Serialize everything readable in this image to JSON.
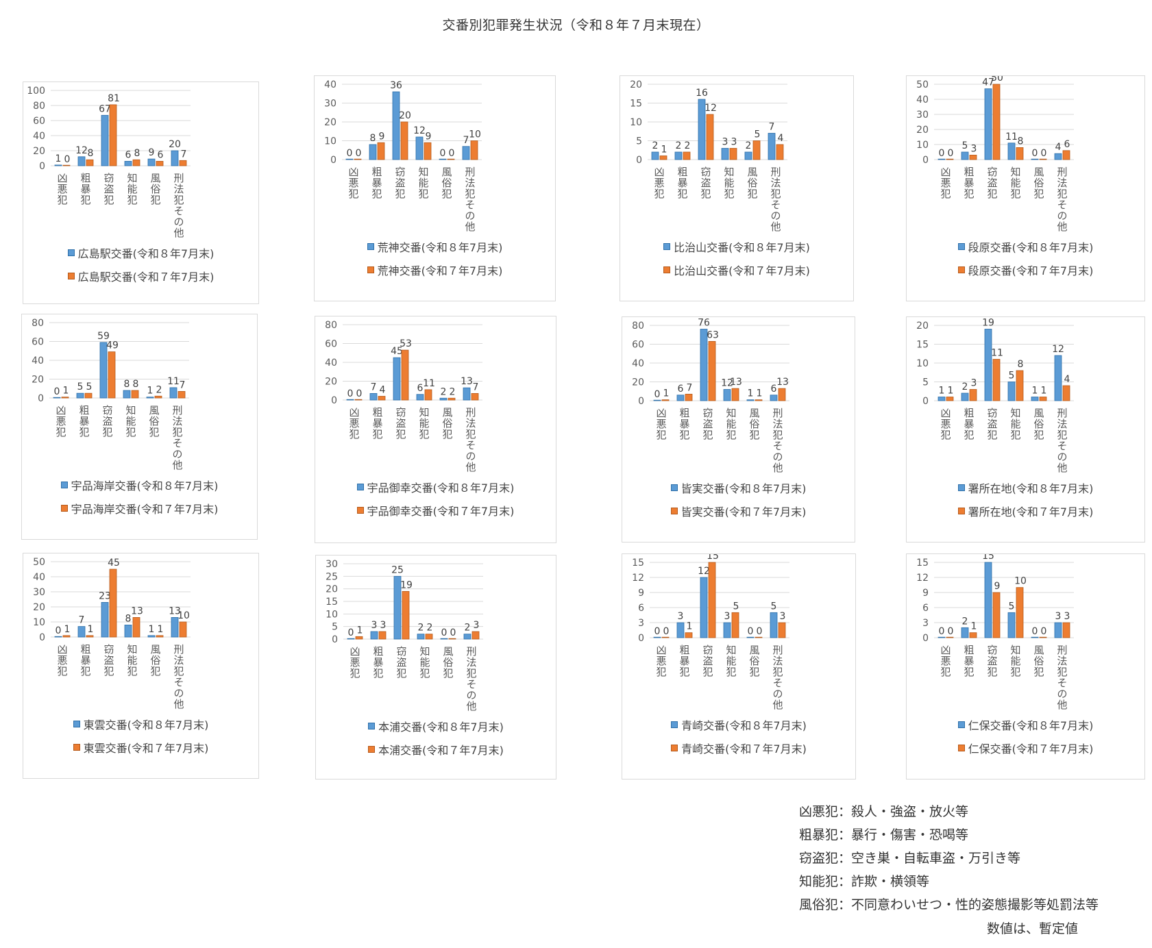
{
  "title": "交番別犯罪発生状況（令和８年７月末現在）",
  "colors": {
    "current": "#5b9bd5",
    "current_border": "#2e6fa8",
    "previous": "#ed7d31",
    "previous_border": "#b45a1c",
    "grid": "#d9d9d9",
    "axis_text": "#595959"
  },
  "categories": [
    "凶悪犯",
    "粗暴犯",
    "窃盗犯",
    "知能犯",
    "風俗犯",
    "刑法犯その他"
  ],
  "chart_data": [
    {
      "type": "bar",
      "categories": [
        "凶悪犯",
        "粗暴犯",
        "窃盗犯",
        "知能犯",
        "風俗犯",
        "刑法犯その他"
      ],
      "ylim": [
        0,
        100
      ],
      "yticks": [
        0,
        20,
        40,
        60,
        80,
        100
      ],
      "series": [
        {
          "name": "広島駅交番(令和８年7月末)",
          "values": [
            1,
            12,
            67,
            6,
            9,
            20
          ]
        },
        {
          "name": "広島駅交番(令和７年7月末)",
          "values": [
            0,
            8,
            81,
            8,
            6,
            7
          ]
        }
      ]
    },
    {
      "type": "bar",
      "categories": [
        "凶悪犯",
        "粗暴犯",
        "窃盗犯",
        "知能犯",
        "風俗犯",
        "刑法犯その他"
      ],
      "ylim": [
        0,
        40
      ],
      "yticks": [
        0,
        10,
        20,
        30,
        40
      ],
      "series": [
        {
          "name": "荒神交番(令和８年7月末)",
          "values": [
            0,
            8,
            36,
            12,
            0,
            7
          ]
        },
        {
          "name": "荒神交番(令和７年7月末)",
          "values": [
            0,
            9,
            20,
            9,
            0,
            10
          ]
        }
      ]
    },
    {
      "type": "bar",
      "categories": [
        "凶悪犯",
        "粗暴犯",
        "窃盗犯",
        "知能犯",
        "風俗犯",
        "刑法犯その他"
      ],
      "ylim": [
        0,
        20
      ],
      "yticks": [
        0,
        5,
        10,
        15,
        20
      ],
      "series": [
        {
          "name": "比治山交番(令和８年7月末)",
          "values": [
            2,
            2,
            16,
            3,
            2,
            7
          ]
        },
        {
          "name": "比治山交番(令和７年7月末)",
          "values": [
            1,
            2,
            12,
            3,
            5,
            4
          ]
        }
      ]
    },
    {
      "type": "bar",
      "categories": [
        "凶悪犯",
        "粗暴犯",
        "窃盗犯",
        "知能犯",
        "風俗犯",
        "刑法犯その他"
      ],
      "ylim": [
        0,
        50
      ],
      "yticks": [
        0,
        10,
        20,
        30,
        40,
        50
      ],
      "series": [
        {
          "name": "段原交番(令和８年7月末)",
          "values": [
            0,
            5,
            47,
            11,
            0,
            4
          ]
        },
        {
          "name": "段原交番(令和７年7月末)",
          "values": [
            0,
            3,
            50,
            8,
            0,
            6
          ]
        }
      ]
    },
    {
      "type": "bar",
      "categories": [
        "凶悪犯",
        "粗暴犯",
        "窃盗犯",
        "知能犯",
        "風俗犯",
        "刑法犯その他"
      ],
      "ylim": [
        0,
        80
      ],
      "yticks": [
        0,
        20,
        40,
        60,
        80
      ],
      "series": [
        {
          "name": "宇品海岸交番(令和８年7月末)",
          "values": [
            0,
            5,
            59,
            8,
            1,
            11
          ]
        },
        {
          "name": "宇品海岸交番(令和７年7月末)",
          "values": [
            1,
            5,
            49,
            8,
            2,
            7
          ]
        }
      ]
    },
    {
      "type": "bar",
      "categories": [
        "凶悪犯",
        "粗暴犯",
        "窃盗犯",
        "知能犯",
        "風俗犯",
        "刑法犯その他"
      ],
      "ylim": [
        0,
        80
      ],
      "yticks": [
        0,
        20,
        40,
        60,
        80
      ],
      "series": [
        {
          "name": "宇品御幸交番(令和８年7月末)",
          "values": [
            0,
            7,
            45,
            6,
            2,
            13
          ]
        },
        {
          "name": "宇品御幸交番(令和７年7月末)",
          "values": [
            0,
            4,
            53,
            11,
            2,
            7
          ]
        }
      ]
    },
    {
      "type": "bar",
      "categories": [
        "凶悪犯",
        "粗暴犯",
        "窃盗犯",
        "知能犯",
        "風俗犯",
        "刑法犯その他"
      ],
      "ylim": [
        0,
        80
      ],
      "yticks": [
        0,
        20,
        40,
        60,
        80
      ],
      "series": [
        {
          "name": "皆実交番(令和８年7月末)",
          "values": [
            0,
            6,
            76,
            12,
            1,
            6
          ]
        },
        {
          "name": "皆実交番(令和７年7月末)",
          "values": [
            1,
            7,
            63,
            13,
            1,
            13
          ]
        }
      ]
    },
    {
      "type": "bar",
      "categories": [
        "凶悪犯",
        "粗暴犯",
        "窃盗犯",
        "知能犯",
        "風俗犯",
        "刑法犯その他"
      ],
      "ylim": [
        0,
        20
      ],
      "yticks": [
        0,
        5,
        10,
        15,
        20
      ],
      "series": [
        {
          "name": "署所在地(令和８年7月末)",
          "values": [
            1,
            2,
            19,
            5,
            1,
            12
          ]
        },
        {
          "name": "署所在地(令和７年7月末)",
          "values": [
            1,
            3,
            11,
            8,
            1,
            4
          ]
        }
      ]
    },
    {
      "type": "bar",
      "categories": [
        "凶悪犯",
        "粗暴犯",
        "窃盗犯",
        "知能犯",
        "風俗犯",
        "刑法犯その他"
      ],
      "ylim": [
        0,
        50
      ],
      "yticks": [
        0,
        10,
        20,
        30,
        40,
        50
      ],
      "series": [
        {
          "name": "東雲交番(令和８年7月末)",
          "values": [
            0,
            7,
            23,
            8,
            1,
            13
          ]
        },
        {
          "name": "東雲交番(令和７年7月末)",
          "values": [
            1,
            1,
            45,
            13,
            1,
            10
          ]
        }
      ]
    },
    {
      "type": "bar",
      "categories": [
        "凶悪犯",
        "粗暴犯",
        "窃盗犯",
        "知能犯",
        "風俗犯",
        "刑法犯その他"
      ],
      "ylim": [
        0,
        30
      ],
      "yticks": [
        0,
        5,
        10,
        15,
        20,
        25,
        30
      ],
      "series": [
        {
          "name": "本浦交番(令和８年7月末)",
          "values": [
            0,
            3,
            25,
            2,
            0,
            2
          ]
        },
        {
          "name": "本浦交番(令和７年7月末)",
          "values": [
            1,
            3,
            19,
            2,
            0,
            3
          ]
        }
      ]
    },
    {
      "type": "bar",
      "categories": [
        "凶悪犯",
        "粗暴犯",
        "窃盗犯",
        "知能犯",
        "風俗犯",
        "刑法犯その他"
      ],
      "ylim": [
        0,
        15
      ],
      "yticks": [
        0,
        3,
        6,
        9,
        12,
        15
      ],
      "series": [
        {
          "name": "青崎交番(令和８年7月末)",
          "values": [
            0,
            3,
            12,
            3,
            0,
            5
          ]
        },
        {
          "name": "青崎交番(令和７年7月末)",
          "values": [
            0,
            1,
            15,
            5,
            0,
            3
          ]
        }
      ]
    },
    {
      "type": "bar",
      "categories": [
        "凶悪犯",
        "粗暴犯",
        "窃盗犯",
        "知能犯",
        "風俗犯",
        "刑法犯その他"
      ],
      "ylim": [
        0,
        15
      ],
      "yticks": [
        0,
        3,
        6,
        9,
        12,
        15
      ],
      "series": [
        {
          "name": "仁保交番(令和８年7月末)",
          "values": [
            0,
            2,
            15,
            5,
            0,
            3
          ]
        },
        {
          "name": "仁保交番(令和７年7月末)",
          "values": [
            0,
            1,
            9,
            10,
            0,
            3
          ]
        }
      ]
    }
  ],
  "notes": [
    "凶悪犯：殺人・強盗・放火等",
    "粗暴犯：暴行・傷害・恐喝等",
    "窃盗犯：空き巣・自転車盗・万引き等",
    "知能犯：詐欺・横領等",
    "風俗犯：不同意わいせつ・性的姿態撮影等処罰法等"
  ],
  "provisional_note": "数値は、暫定値"
}
